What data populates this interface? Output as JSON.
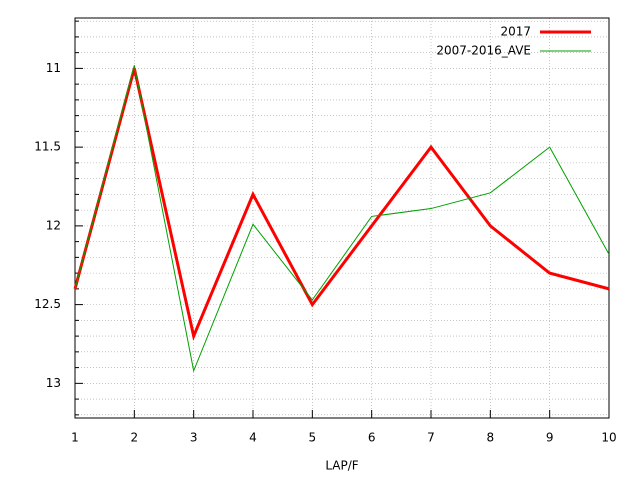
{
  "chart_data": {
    "type": "line",
    "xlabel": "LAP/F",
    "x": [
      1,
      2,
      3,
      4,
      5,
      6,
      7,
      8,
      9,
      10
    ],
    "series": [
      {
        "name": "2017",
        "color": "#ff0000",
        "width": 3,
        "values": [
          12.4,
          11.0,
          12.7,
          11.8,
          12.5,
          12.0,
          11.5,
          12.0,
          12.3,
          12.4
        ]
      },
      {
        "name": "2007-2016_AVE",
        "color": "#00a000",
        "width": 1,
        "values": [
          12.4,
          10.98,
          12.92,
          11.99,
          12.47,
          11.94,
          11.89,
          11.79,
          11.5,
          12.18
        ]
      }
    ],
    "xlim": [
      1,
      10
    ],
    "xticks": [
      1,
      2,
      3,
      4,
      5,
      6,
      7,
      8,
      9,
      10
    ],
    "ylim": [
      10.68,
      13.22
    ],
    "y_inverted": true,
    "yticks": [
      11,
      11.5,
      12,
      12.5,
      13
    ],
    "yminorticks": [
      10.7,
      10.8,
      10.9,
      11.1,
      11.2,
      11.3,
      11.4,
      11.6,
      11.7,
      11.8,
      11.9,
      12.1,
      12.2,
      12.3,
      12.4,
      12.6,
      12.7,
      12.8,
      12.9,
      13.1,
      13.2
    ],
    "grid": true,
    "legend": "top-right"
  }
}
